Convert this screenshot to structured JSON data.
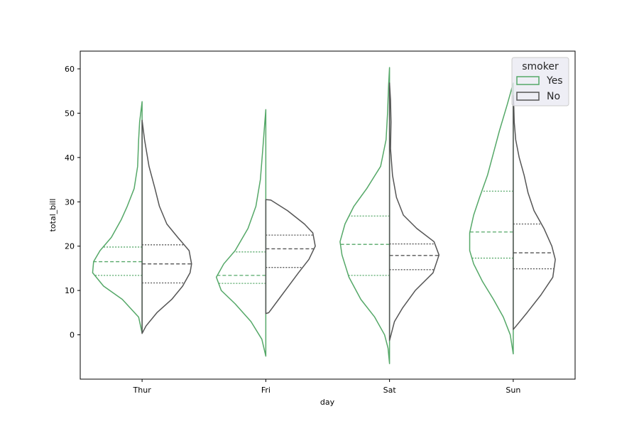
{
  "chart_data": {
    "type": "violin",
    "split": true,
    "inner": "quartile",
    "xlabel": "day",
    "ylabel": "total_bill",
    "categories": [
      "Thur",
      "Fri",
      "Sat",
      "Sun"
    ],
    "ylim": [
      -10,
      64
    ],
    "yticks": [
      0,
      10,
      20,
      30,
      40,
      50,
      60
    ],
    "legend": {
      "title": "smoker",
      "position": "top-right",
      "entries": [
        {
          "label": "Yes",
          "color": "#55a868"
        },
        {
          "label": "No",
          "color": "#555555"
        }
      ]
    },
    "series": [
      {
        "name": "Yes",
        "color": "#55a868",
        "side": "left",
        "violins": [
          {
            "category": "Thur",
            "q1": 13.4,
            "median": 16.5,
            "q3": 19.8,
            "profile": [
              [
                0.4,
                0
              ],
              [
                4,
                0.07
              ],
              [
                8,
                0.4
              ],
              [
                11,
                0.78
              ],
              [
                14,
                1
              ],
              [
                16.5,
                0.98
              ],
              [
                19,
                0.85
              ],
              [
                22,
                0.62
              ],
              [
                26,
                0.42
              ],
              [
                29,
                0.3
              ],
              [
                33,
                0.16
              ],
              [
                38,
                0.09
              ],
              [
                44,
                0.07
              ],
              [
                48,
                0.05
              ],
              [
                52.6,
                0
              ]
            ]
          },
          {
            "category": "Fri",
            "q1": 11.6,
            "median": 13.4,
            "q3": 18.7,
            "profile": [
              [
                -4.8,
                0
              ],
              [
                -1,
                0.08
              ],
              [
                3,
                0.3
              ],
              [
                7,
                0.62
              ],
              [
                10,
                0.9
              ],
              [
                13,
                1
              ],
              [
                16,
                0.85
              ],
              [
                19,
                0.62
              ],
              [
                24,
                0.36
              ],
              [
                29,
                0.2
              ],
              [
                35,
                0.11
              ],
              [
                42,
                0.06
              ],
              [
                48,
                0.02
              ],
              [
                50.8,
                0
              ]
            ]
          },
          {
            "category": "Sat",
            "q1": 13.4,
            "median": 20.4,
            "q3": 26.8,
            "profile": [
              [
                -6.5,
                0
              ],
              [
                -3,
                0.03
              ],
              [
                0,
                0.1
              ],
              [
                4,
                0.3
              ],
              [
                8,
                0.58
              ],
              [
                13,
                0.82
              ],
              [
                18,
                0.96
              ],
              [
                21,
                1
              ],
              [
                25,
                0.9
              ],
              [
                29,
                0.72
              ],
              [
                33,
                0.46
              ],
              [
                38,
                0.18
              ],
              [
                44,
                0.07
              ],
              [
                50,
                0.04
              ],
              [
                56,
                0.02
              ],
              [
                60.3,
                0
              ]
            ]
          },
          {
            "category": "Sun",
            "q1": 17.3,
            "median": 23.2,
            "q3": 32.4,
            "profile": [
              [
                -4.3,
                0
              ],
              [
                0,
                0.06
              ],
              [
                4,
                0.2
              ],
              [
                8,
                0.4
              ],
              [
                12,
                0.62
              ],
              [
                16,
                0.8
              ],
              [
                19,
                0.88
              ],
              [
                23,
                0.88
              ],
              [
                27,
                0.8
              ],
              [
                31,
                0.68
              ],
              [
                36,
                0.52
              ],
              [
                41,
                0.4
              ],
              [
                46,
                0.28
              ],
              [
                52,
                0.12
              ],
              [
                56.8,
                0
              ]
            ]
          }
        ]
      },
      {
        "name": "No",
        "color": "#555555",
        "side": "right",
        "violins": [
          {
            "category": "Thur",
            "q1": 11.7,
            "median": 16.0,
            "q3": 20.3,
            "profile": [
              [
                0.3,
                0
              ],
              [
                2,
                0.08
              ],
              [
                5,
                0.3
              ],
              [
                8,
                0.6
              ],
              [
                11,
                0.82
              ],
              [
                14,
                0.97
              ],
              [
                16,
                1
              ],
              [
                19,
                0.95
              ],
              [
                22,
                0.72
              ],
              [
                25,
                0.5
              ],
              [
                29,
                0.35
              ],
              [
                33,
                0.26
              ],
              [
                38,
                0.14
              ],
              [
                44,
                0.05
              ],
              [
                48.4,
                0
              ]
            ]
          },
          {
            "category": "Fri",
            "q1": 15.2,
            "median": 19.4,
            "q3": 22.5,
            "profile": [
              [
                4.8,
                0
              ],
              [
                5,
                0.06
              ],
              [
                8,
                0.26
              ],
              [
                11,
                0.46
              ],
              [
                14,
                0.66
              ],
              [
                17,
                0.87
              ],
              [
                20,
                1
              ],
              [
                23,
                0.95
              ],
              [
                25,
                0.78
              ],
              [
                28,
                0.44
              ],
              [
                30.4,
                0.1
              ],
              [
                30.5,
                0
              ]
            ]
          },
          {
            "category": "Sat",
            "q1": 14.7,
            "median": 17.9,
            "q3": 20.5,
            "profile": [
              [
                -1.3,
                0
              ],
              [
                0,
                0.03
              ],
              [
                3,
                0.1
              ],
              [
                6,
                0.26
              ],
              [
                10,
                0.52
              ],
              [
                14,
                0.88
              ],
              [
                18,
                1
              ],
              [
                21,
                0.9
              ],
              [
                24,
                0.55
              ],
              [
                27,
                0.28
              ],
              [
                31,
                0.14
              ],
              [
                36,
                0.06
              ],
              [
                42,
                0.02
              ],
              [
                48,
                0.03
              ],
              [
                53,
                0.02
              ],
              [
                56.8,
                0
              ]
            ]
          },
          {
            "category": "Sun",
            "q1": 14.9,
            "median": 18.5,
            "q3": 25.0,
            "profile": [
              [
                1.2,
                0
              ],
              [
                2,
                0.06
              ],
              [
                5,
                0.28
              ],
              [
                9,
                0.56
              ],
              [
                13,
                0.8
              ],
              [
                17,
                0.85
              ],
              [
                20,
                0.78
              ],
              [
                24,
                0.62
              ],
              [
                28,
                0.42
              ],
              [
                32,
                0.3
              ],
              [
                36,
                0.22
              ],
              [
                40,
                0.12
              ],
              [
                44,
                0.05
              ],
              [
                48,
                0.02
              ],
              [
                52,
                0.01
              ],
              [
                54,
                0
              ]
            ]
          }
        ]
      }
    ]
  }
}
